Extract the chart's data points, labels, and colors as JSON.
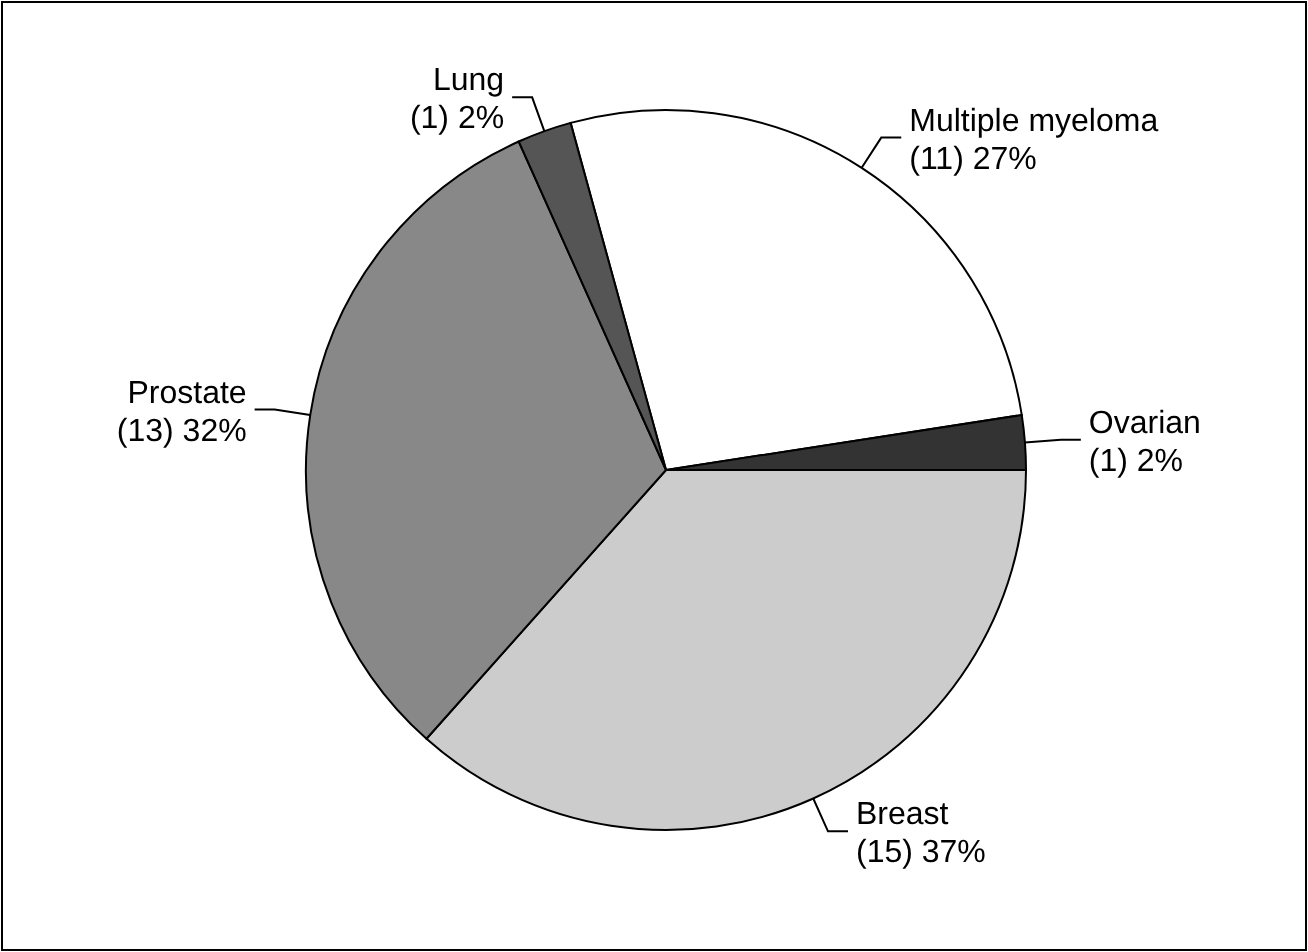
{
  "chart_data": {
    "type": "pie",
    "categories": [
      "Multiple myeloma",
      "Ovarian",
      "Breast",
      "Prostate",
      "Lung"
    ],
    "values": [
      11,
      1,
      15,
      13,
      1
    ],
    "colors": [
      "#ffffff",
      "#333333",
      "#cccccc",
      "#888888",
      "#555555"
    ],
    "value_labels": [
      "(11)  27%",
      "(1)  2%",
      "(15)  37%",
      "(13)  32%",
      "(1)  2%"
    ]
  }
}
